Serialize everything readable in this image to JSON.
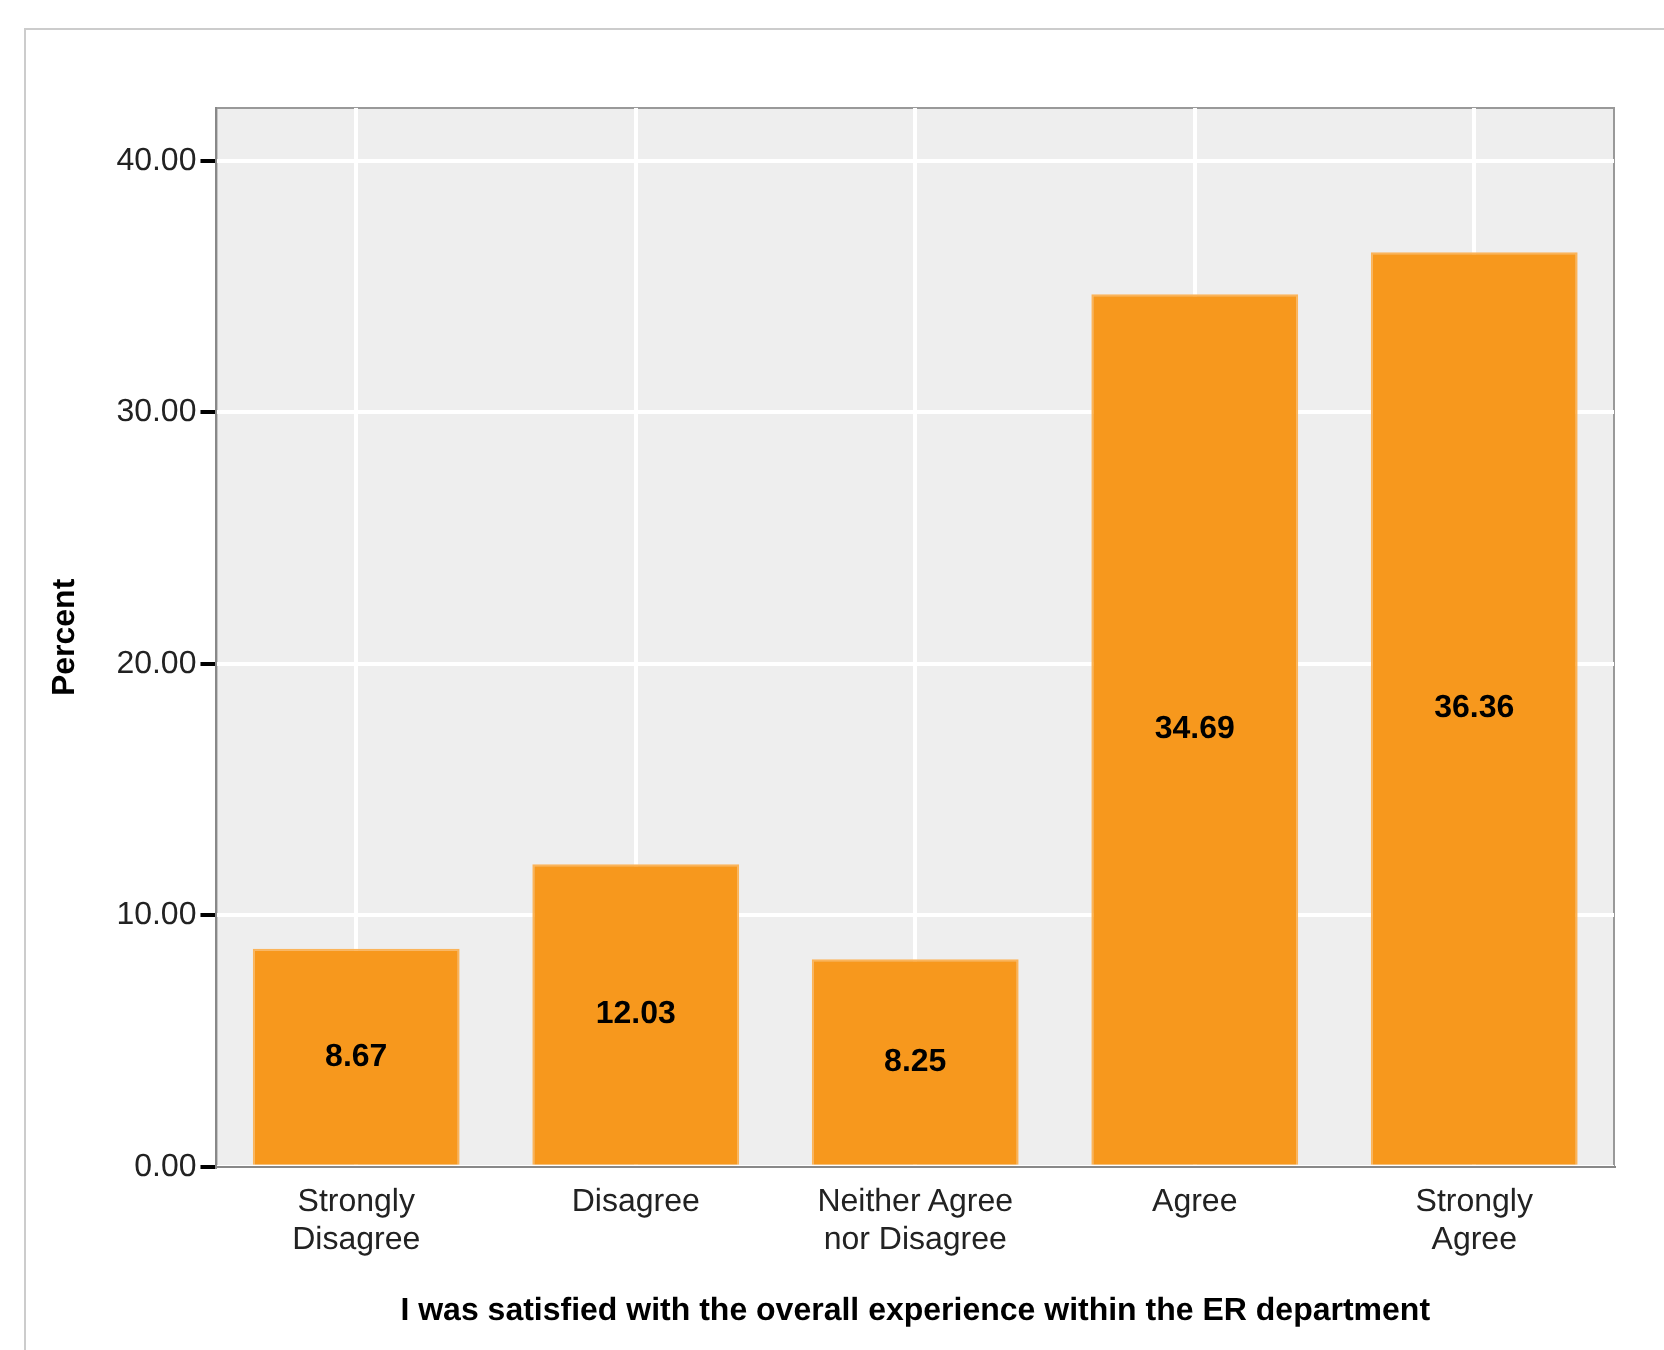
{
  "chart_data": {
    "type": "bar",
    "xlabel": "I was satisfied with the overall experience within the ER department",
    "ylabel": "Percent",
    "categories": [
      "Strongly Disagree",
      "Disagree",
      "Neither Agree nor Disagree",
      "Agree",
      "Strongly Agree"
    ],
    "values": [
      8.67,
      12.03,
      8.25,
      34.69,
      36.36
    ],
    "color": "#f7981d",
    "ylim": [
      0,
      42.1
    ],
    "yticks": [
      {
        "value": 0,
        "label": "0.00"
      },
      {
        "value": 10,
        "label": "10.00"
      },
      {
        "value": 20,
        "label": "20.00"
      },
      {
        "value": 30,
        "label": "30.00"
      },
      {
        "value": 40,
        "label": "40.00"
      }
    ],
    "grid": true,
    "data_labels": true
  }
}
